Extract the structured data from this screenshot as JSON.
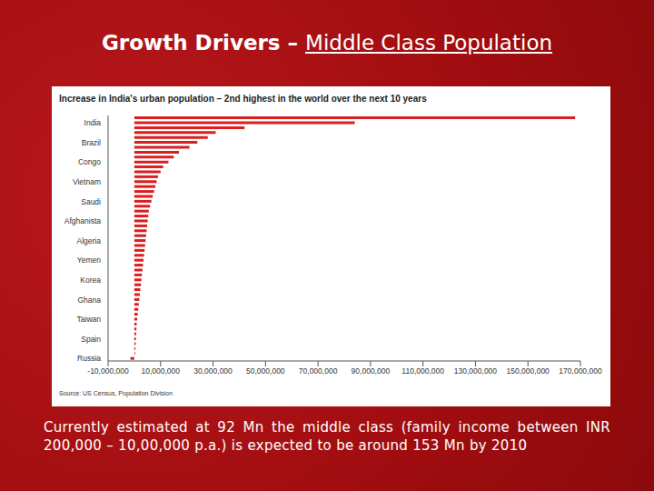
{
  "slide": {
    "title": "Growth Drivers –",
    "title_underlined": "Middle Class Population",
    "caption": "Currently estimated at 92 Mn the middle class (family income between INR 200,000 – 10,00,000 p.a.) is expected to be around 153 Mn by 2010",
    "source": "Source: US Census, Population Division"
  },
  "chart_data": {
    "type": "bar",
    "orientation": "horizontal",
    "title": "Increase in India's urban population – 2nd highest in the world over the next 10 years",
    "categories": [
      null,
      "India",
      null,
      null,
      null,
      "Brazil",
      null,
      null,
      null,
      "Congo",
      null,
      null,
      null,
      "Vietnam",
      null,
      null,
      null,
      "Saudi",
      null,
      null,
      null,
      "Afghanista",
      null,
      null,
      null,
      "Algeria",
      null,
      null,
      null,
      "Yemen",
      null,
      null,
      null,
      "Korea",
      null,
      null,
      null,
      "Ghana",
      null,
      null,
      null,
      "Taiwan",
      null,
      null,
      null,
      "Spain",
      null,
      null,
      null,
      "Russia"
    ],
    "values": [
      168000000,
      84000000,
      42000000,
      31000000,
      28000000,
      24000000,
      21000000,
      17000000,
      15000000,
      13000000,
      11000000,
      10000000,
      9000000,
      8500000,
      8000000,
      7500000,
      7000000,
      6500000,
      6000000,
      5500000,
      5300000,
      5100000,
      4900000,
      4700000,
      4500000,
      4300000,
      4100000,
      3900000,
      3700000,
      3500000,
      3300000,
      3100000,
      2900000,
      2700000,
      2500000,
      2300000,
      2100000,
      1900000,
      1700000,
      1500000,
      1300000,
      1100000,
      900000,
      800000,
      700000,
      600000,
      500000,
      400000,
      300000,
      -1500000
    ],
    "color": "#d91f1f",
    "xlim": [
      -10000000,
      170000000
    ],
    "xticks": [
      {
        "value": -10000000,
        "label": "-10,000,000"
      },
      {
        "value": 10000000,
        "label": "10,000,000"
      },
      {
        "value": 30000000,
        "label": "30,000,000"
      },
      {
        "value": 50000000,
        "label": "50,000,000"
      },
      {
        "value": 70000000,
        "label": "70,000,000"
      },
      {
        "value": 90000000,
        "label": "90,000,000"
      },
      {
        "value": 110000000,
        "label": "110,000,000"
      },
      {
        "value": 130000000,
        "label": "130,000,000"
      },
      {
        "value": 150000000,
        "label": "150,000,000"
      },
      {
        "value": 170000000,
        "label": "170,000,000"
      }
    ],
    "grid": false
  }
}
